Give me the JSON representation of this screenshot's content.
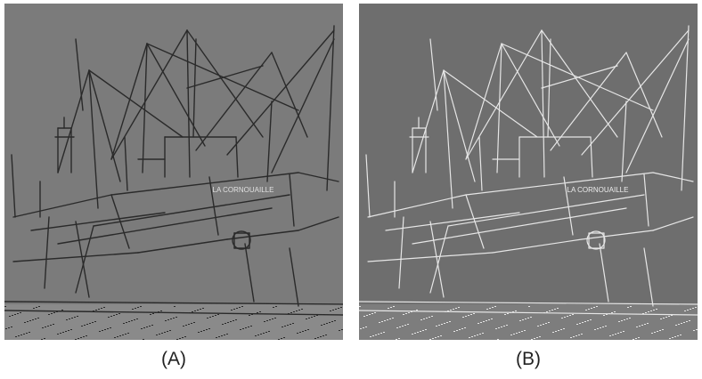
{
  "figure": {
    "panels": [
      {
        "id": "A",
        "caption": "(A)",
        "filter": "emboss-edge",
        "colors": {
          "background": "#7b7b7b",
          "line_dark": "#2a2a2a",
          "line_light": "#d8d8d8",
          "ground": "#8a8a8a"
        }
      },
      {
        "id": "B",
        "caption": "(B)",
        "filter": "edge-magnitude",
        "colors": {
          "background": "#6e6e6e",
          "line_dark": "#585858",
          "line_light": "#e6e6e6",
          "ground": "#7d7d7d"
        }
      }
    ],
    "subject": {
      "hull_lettering": "LA CORNOUAILLE"
    }
  }
}
